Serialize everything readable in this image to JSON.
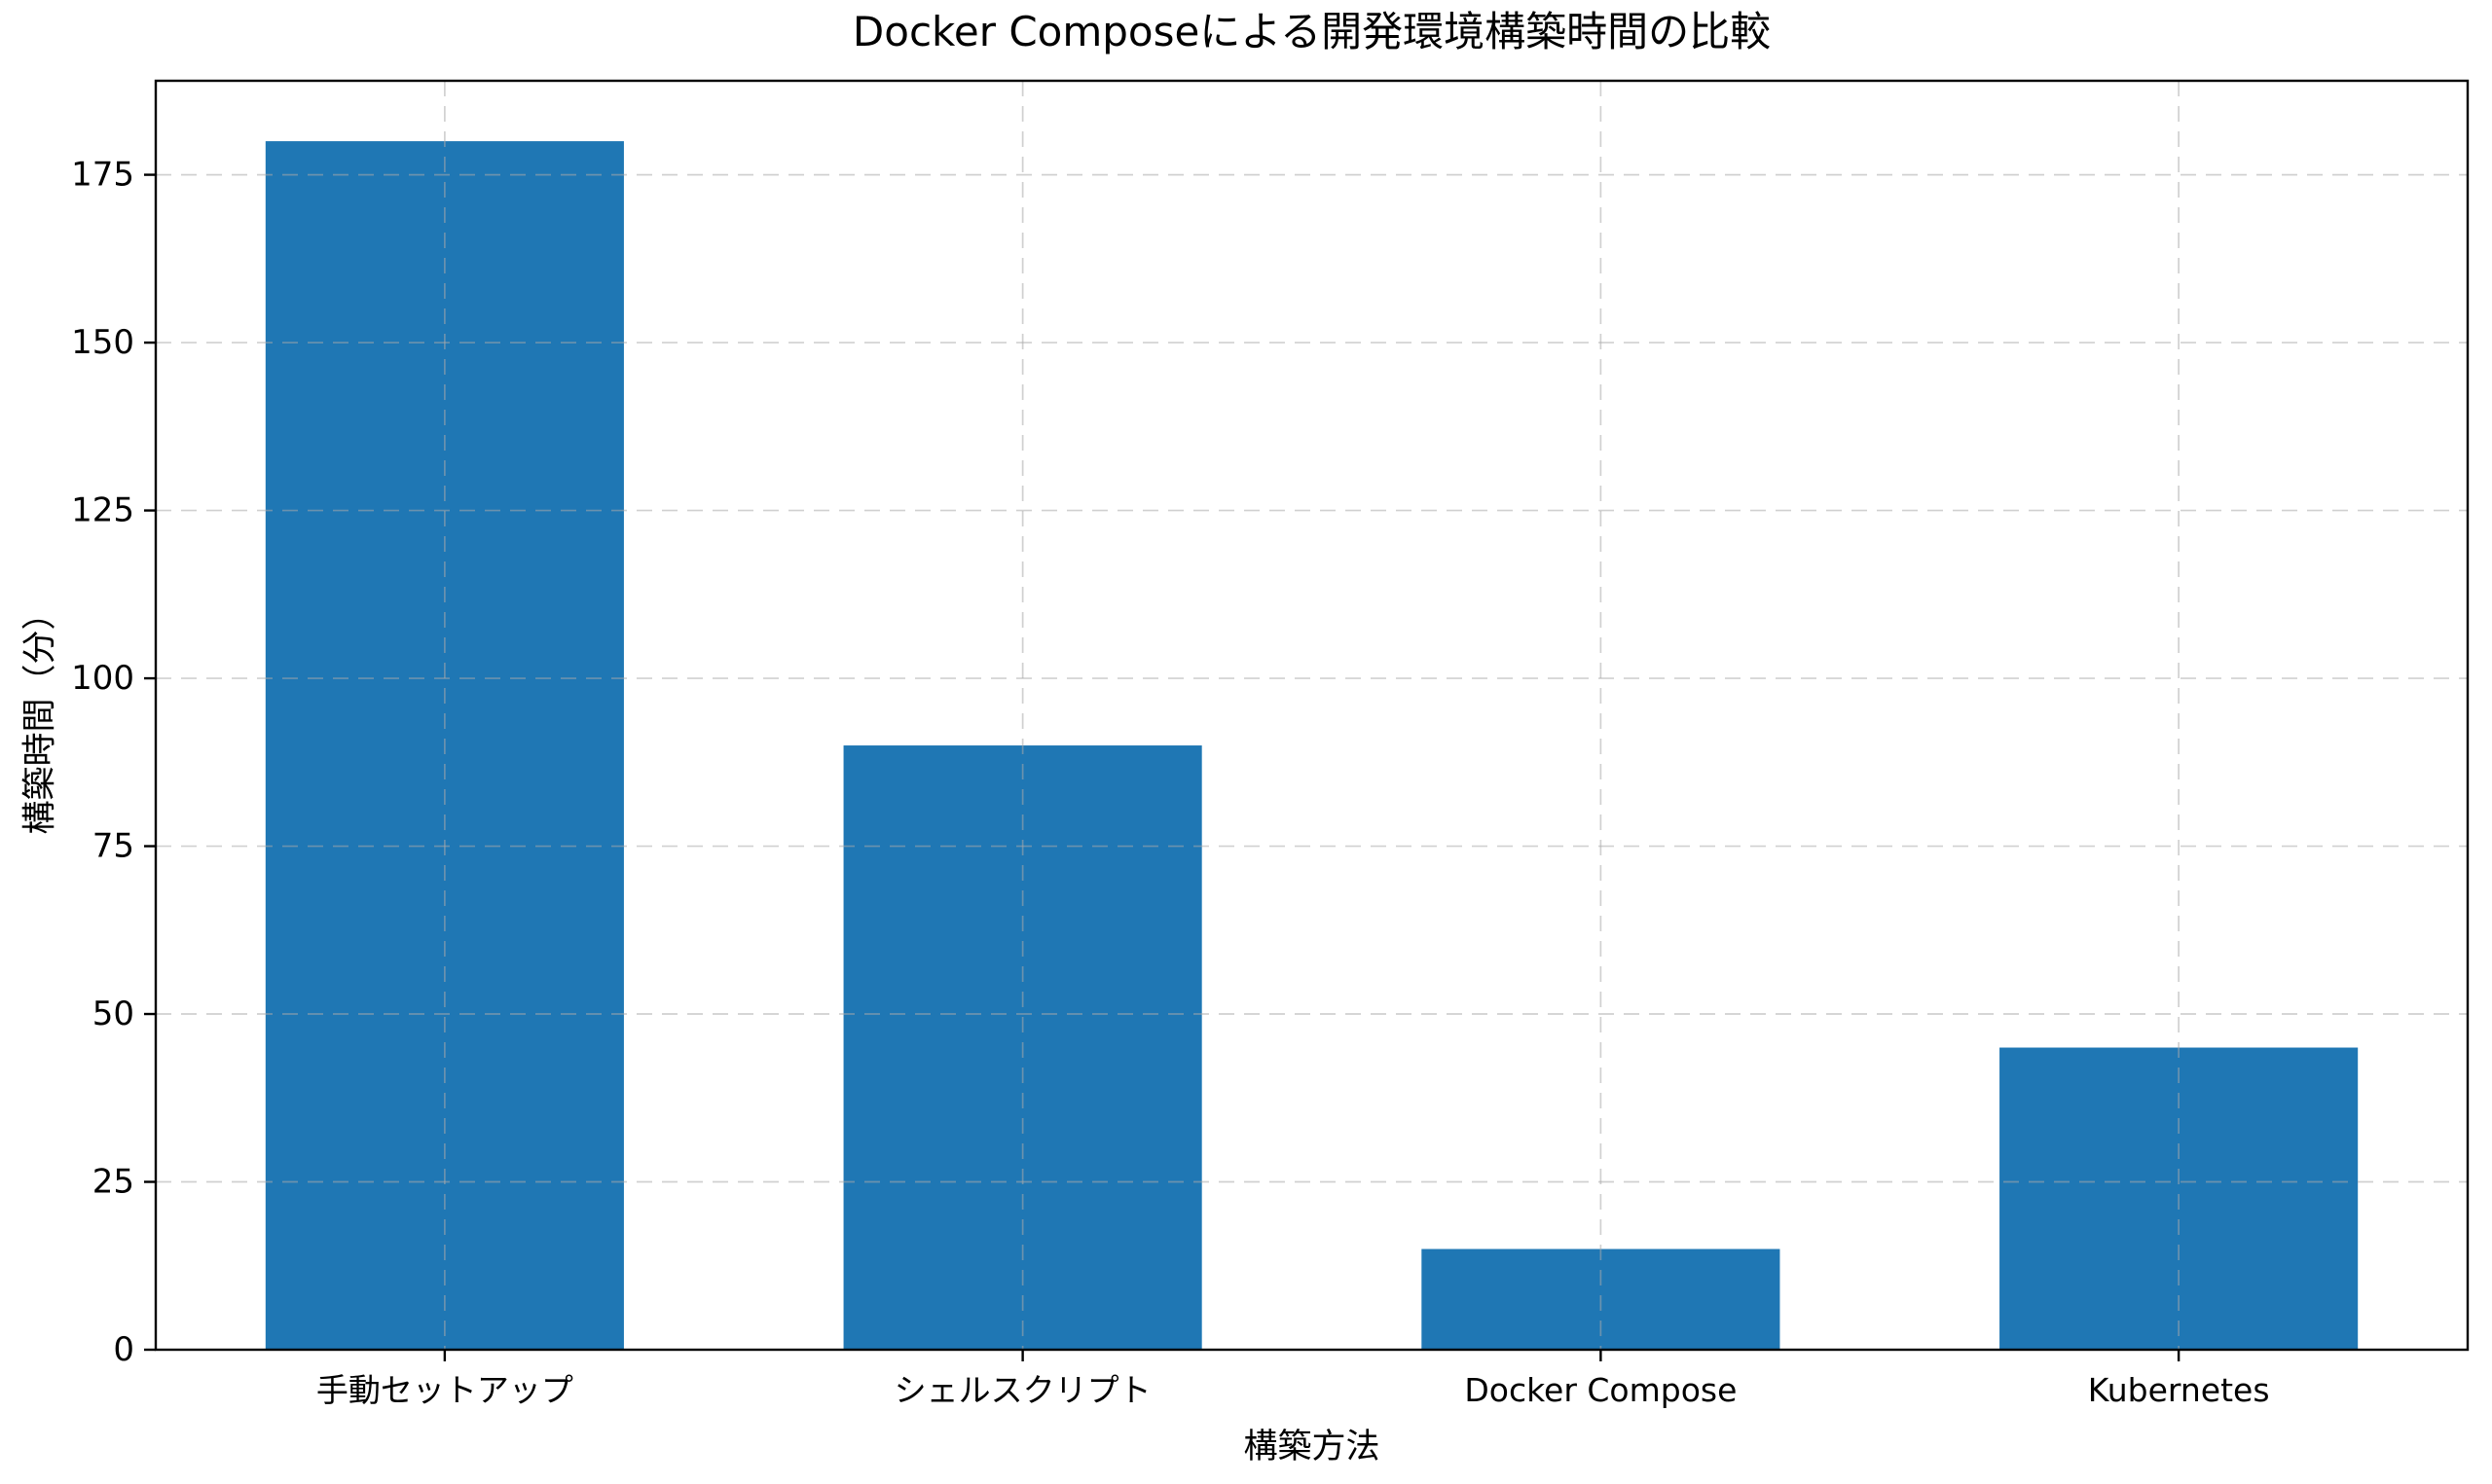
{
  "chart_data": {
    "type": "bar",
    "title": "Docker Composeによる開発環境構築時間の比較",
    "xlabel": "構築方法",
    "ylabel": "構築時間（分）",
    "categories": [
      "手動セットアップ",
      "シェルスクリプト",
      "Docker Compose",
      "Kubernetes"
    ],
    "values": [
      180,
      90,
      15,
      45
    ],
    "yticks": [
      0,
      25,
      50,
      75,
      100,
      125,
      150,
      175
    ],
    "ylim": [
      0,
      189
    ],
    "bar_color": "#1f77b4",
    "bar_width_fraction": 0.62,
    "grid": true,
    "grid_style": "dashed",
    "grid_color": "#aaaaaa",
    "grid_opacity": 0.55,
    "spine_color": "#000000",
    "tick_color": "#000000",
    "text_color": "#000000",
    "background_color": "#ffffff",
    "legend": null
  }
}
